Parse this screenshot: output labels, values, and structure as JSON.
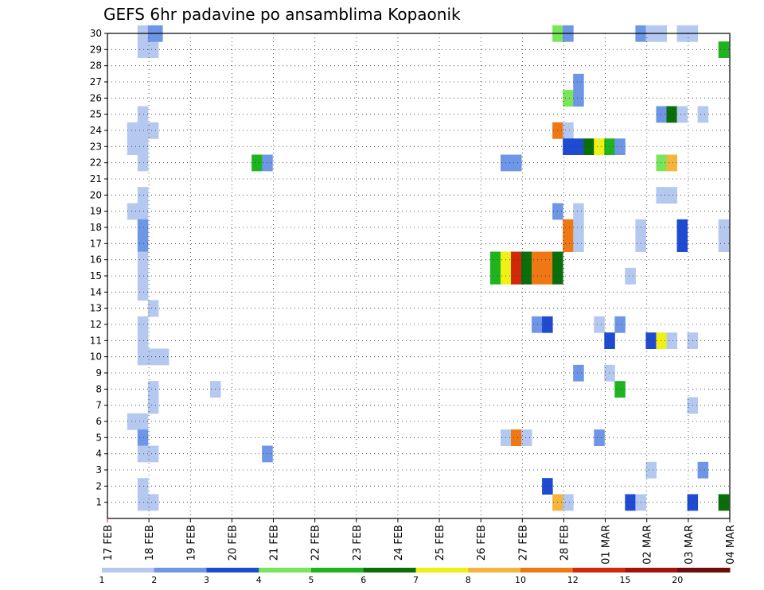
{
  "chart_data": {
    "type": "heatmap",
    "title": "GEFS 6hr padavine po ansamblima Kopaonik",
    "xlabel": "",
    "ylabel": "",
    "x_ticks": [
      "17 FEB",
      "18 FEB",
      "19 FEB",
      "20 FEB",
      "21 FEB",
      "22 FEB",
      "23 FEB",
      "24 FEB",
      "25 FEB",
      "26 FEB",
      "27 FEB",
      "28 FEB",
      "01 MAR",
      "02 MAR",
      "03 MAR",
      "04 MAR"
    ],
    "x_range_days": [
      0,
      15
    ],
    "y_ticks": [
      1,
      2,
      3,
      4,
      5,
      6,
      7,
      8,
      9,
      10,
      11,
      12,
      13,
      14,
      15,
      16,
      17,
      18,
      19,
      20,
      21,
      22,
      23,
      24,
      25,
      26,
      27,
      28,
      29,
      30
    ],
    "y_range": [
      0,
      30
    ],
    "grid": true,
    "color_levels": [
      1,
      2,
      3,
      4,
      5,
      6,
      7,
      8,
      10,
      12,
      15,
      20
    ],
    "level_labels": [
      "1",
      "2",
      "3",
      "4",
      "5",
      "6",
      "7",
      "8",
      "10",
      "12",
      "15",
      "20"
    ],
    "colors": [
      "#b4c8f0",
      "#6e96e6",
      "#1e4bd2",
      "#78e65a",
      "#1eb41e",
      "#0a6e0a",
      "#f0f014",
      "#f5b43c",
      "#f07814",
      "#d2280a",
      "#a0140a",
      "#6e0a0a"
    ],
    "x_unit": "days since 17 FEB 00Z (6-hourly steps)",
    "points": [
      {
        "member": 30,
        "t": [
          [
            0.85,
            1
          ],
          [
            1.2,
            2
          ]
        ]
      },
      {
        "member": 29,
        "t": [
          [
            0.85,
            1
          ],
          [
            1.1,
            1
          ]
        ]
      },
      {
        "member": 25,
        "t": [
          [
            0.85,
            1
          ]
        ]
      },
      {
        "member": 24,
        "t": [
          [
            0.6,
            1
          ],
          [
            0.85,
            1
          ],
          [
            1.1,
            1
          ]
        ]
      },
      {
        "member": 23,
        "t": [
          [
            0.6,
            1
          ],
          [
            0.85,
            1
          ]
        ]
      },
      {
        "member": 22,
        "t": [
          [
            0.85,
            1
          ]
        ]
      },
      {
        "member": 20,
        "t": [
          [
            0.85,
            1
          ]
        ]
      },
      {
        "member": 19,
        "t": [
          [
            0.6,
            1
          ],
          [
            0.85,
            1
          ]
        ]
      },
      {
        "member": 18,
        "t": [
          [
            0.85,
            2
          ]
        ]
      },
      {
        "member": 17,
        "t": [
          [
            0.85,
            2
          ]
        ]
      },
      {
        "member": 16,
        "t": [
          [
            0.85,
            1
          ]
        ]
      },
      {
        "member": 15,
        "t": [
          [
            0.85,
            1
          ]
        ]
      },
      {
        "member": 14,
        "t": [
          [
            0.85,
            1
          ]
        ]
      },
      {
        "member": 13,
        "t": [
          [
            1.1,
            1
          ]
        ]
      },
      {
        "member": 12,
        "t": [
          [
            0.85,
            1
          ]
        ]
      },
      {
        "member": 11,
        "t": [
          [
            0.85,
            1
          ]
        ]
      },
      {
        "member": 10,
        "t": [
          [
            0.85,
            1
          ],
          [
            1.1,
            1
          ],
          [
            1.35,
            1
          ]
        ]
      },
      {
        "member": 9,
        "t": []
      },
      {
        "member": 8,
        "t": [
          [
            1.1,
            1
          ]
        ]
      },
      {
        "member": 7,
        "t": [
          [
            1.1,
            1
          ]
        ]
      },
      {
        "member": 6,
        "t": [
          [
            0.6,
            1
          ],
          [
            0.85,
            1
          ]
        ]
      },
      {
        "member": 5,
        "t": [
          [
            0.85,
            2
          ]
        ]
      },
      {
        "member": 4,
        "t": [
          [
            0.85,
            1
          ],
          [
            1.1,
            1
          ]
        ]
      },
      {
        "member": 2,
        "t": [
          [
            0.85,
            1
          ]
        ]
      },
      {
        "member": 1,
        "t": [
          [
            0.85,
            1
          ],
          [
            1.1,
            1
          ]
        ]
      }
    ],
    "cells": [
      [
        30,
        1.1,
        2
      ],
      [
        30,
        10.85,
        4
      ],
      [
        30,
        11.1,
        2
      ],
      [
        30,
        12.85,
        2
      ],
      [
        30,
        13.1,
        1
      ],
      [
        30,
        13.35,
        1
      ],
      [
        30,
        13.85,
        1
      ],
      [
        30,
        14.1,
        1
      ],
      [
        29,
        14.85,
        5
      ],
      [
        27,
        11.35,
        2
      ],
      [
        26,
        11.1,
        4
      ],
      [
        26,
        11.35,
        2
      ],
      [
        25,
        13.35,
        2
      ],
      [
        25,
        13.6,
        6
      ],
      [
        25,
        13.85,
        1
      ],
      [
        25,
        14.35,
        1
      ],
      [
        24,
        10.85,
        9
      ],
      [
        24,
        11.1,
        1
      ],
      [
        23,
        11.1,
        3
      ],
      [
        23,
        11.35,
        3
      ],
      [
        23,
        11.6,
        6
      ],
      [
        23,
        11.85,
        7
      ],
      [
        23,
        12.1,
        5
      ],
      [
        23,
        12.35,
        2
      ],
      [
        22,
        3.6,
        5
      ],
      [
        22,
        3.85,
        2
      ],
      [
        22,
        9.6,
        2
      ],
      [
        22,
        9.85,
        2
      ],
      [
        22,
        13.35,
        4
      ],
      [
        22,
        13.6,
        8
      ],
      [
        20,
        13.35,
        1
      ],
      [
        20,
        13.6,
        1
      ],
      [
        19,
        10.85,
        2
      ],
      [
        19,
        11.35,
        1
      ],
      [
        18,
        11.1,
        9
      ],
      [
        18,
        11.35,
        1
      ],
      [
        18,
        12.85,
        1
      ],
      [
        18,
        13.85,
        3
      ],
      [
        18,
        14.85,
        1
      ],
      [
        17,
        11.1,
        9
      ],
      [
        17,
        11.35,
        1
      ],
      [
        17,
        12.85,
        1
      ],
      [
        17,
        13.85,
        3
      ],
      [
        17,
        14.85,
        1
      ],
      [
        16,
        9.35,
        5
      ],
      [
        16,
        9.6,
        7
      ],
      [
        16,
        9.85,
        10
      ],
      [
        16,
        10.1,
        6
      ],
      [
        16,
        10.35,
        9
      ],
      [
        16,
        10.6,
        9
      ],
      [
        16,
        10.85,
        6
      ],
      [
        15,
        9.35,
        5
      ],
      [
        15,
        9.6,
        7
      ],
      [
        15,
        9.85,
        10
      ],
      [
        15,
        10.1,
        6
      ],
      [
        15,
        10.35,
        9
      ],
      [
        15,
        10.6,
        9
      ],
      [
        15,
        10.85,
        6
      ],
      [
        15,
        12.6,
        1
      ],
      [
        12,
        10.35,
        2
      ],
      [
        12,
        10.6,
        3
      ],
      [
        12,
        11.85,
        1
      ],
      [
        12,
        12.35,
        2
      ],
      [
        11,
        12.1,
        3
      ],
      [
        11,
        13.1,
        3
      ],
      [
        11,
        13.35,
        7
      ],
      [
        11,
        13.6,
        1
      ],
      [
        11,
        14.1,
        1
      ],
      [
        9,
        11.35,
        2
      ],
      [
        9,
        12.1,
        1
      ],
      [
        8,
        2.6,
        1
      ],
      [
        8,
        12.35,
        5
      ],
      [
        7,
        14.1,
        1
      ],
      [
        5,
        9.6,
        1
      ],
      [
        5,
        9.85,
        9
      ],
      [
        5,
        10.1,
        1
      ],
      [
        5,
        11.85,
        2
      ],
      [
        4,
        3.85,
        2
      ],
      [
        3,
        13.1,
        1
      ],
      [
        3,
        14.35,
        2
      ],
      [
        2,
        10.6,
        3
      ],
      [
        1,
        10.85,
        8
      ],
      [
        1,
        11.1,
        1
      ],
      [
        1,
        12.6,
        3
      ],
      [
        1,
        12.85,
        1
      ],
      [
        1,
        14.1,
        3
      ],
      [
        1,
        14.85,
        6
      ]
    ],
    "cell_format": "[member, day_offset, color_level_index]"
  }
}
